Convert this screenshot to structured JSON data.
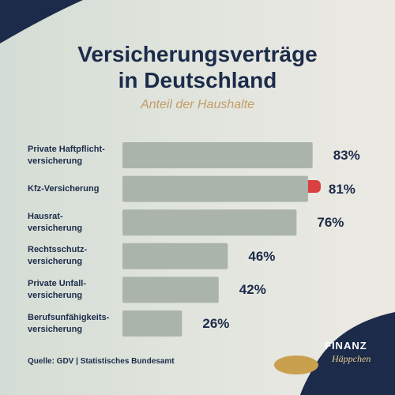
{
  "chart_data": {
    "type": "bar",
    "title": "Versicherungsverträge\nin Deutschland",
    "subtitle": "Anteil der Haushalte",
    "categories": [
      "Private Haftpflicht-\nversicherung",
      "Kfz-Versicherung",
      "Hausrat-\nversicherung",
      "Rechtsschutz-\nversicherung",
      "Private Unfall-\nversicherung",
      "Berufsunfähigkeits-\nversicherung"
    ],
    "values": [
      83,
      81,
      76,
      46,
      42,
      26
    ],
    "value_labels": [
      "83%",
      "81%",
      "76%",
      "46%",
      "42%",
      "26%"
    ],
    "color": "#aab4ab",
    "source": "Quelle: GDV | Statistisches Bundesamt"
  },
  "logo": {
    "line1": "FINANZ",
    "line2": "Häppchen"
  }
}
